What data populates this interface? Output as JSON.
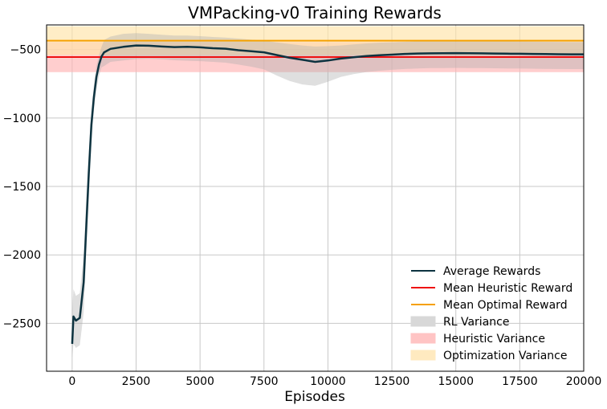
{
  "chart_data": {
    "type": "line",
    "title": "VMPacking-v0 Training Rewards",
    "xlabel": "Episodes",
    "ylabel": "",
    "xlim": [
      -1000,
      20000
    ],
    "ylim": [
      -2850,
      -320
    ],
    "grid": true,
    "legend_position": "lower-right",
    "x_ticks": [
      0,
      2500,
      5000,
      7500,
      10000,
      12500,
      15000,
      17500,
      20000
    ],
    "x_tick_labels": [
      "0",
      "2500",
      "5000",
      "7500",
      "10000",
      "12500",
      "15000",
      "17500",
      "20000"
    ],
    "y_ticks": [
      -2500,
      -2000,
      -1500,
      -1000,
      -500
    ],
    "y_tick_labels": [
      "−2500",
      "−2000",
      "−1500",
      "−1000",
      "−500"
    ],
    "series": [
      {
        "name": "Average Rewards",
        "kind": "line",
        "color": "#0d3340",
        "x": [
          0,
          50,
          150,
          300,
          450,
          550,
          650,
          750,
          850,
          950,
          1050,
          1150,
          1250,
          1500,
          2000,
          2500,
          3000,
          3500,
          4000,
          4500,
          5000,
          5500,
          6000,
          6500,
          7000,
          7500,
          8000,
          8500,
          9000,
          9500,
          10000,
          10500,
          11000,
          11500,
          12000,
          12500,
          13000,
          13500,
          14000,
          14500,
          15000,
          15500,
          16000,
          16500,
          17000,
          17500,
          18000,
          18500,
          19000,
          19500,
          20000
        ],
        "y": [
          -2650,
          -2450,
          -2480,
          -2460,
          -2200,
          -1800,
          -1400,
          -1050,
          -850,
          -700,
          -610,
          -550,
          -520,
          -495,
          -480,
          -470,
          -472,
          -478,
          -482,
          -480,
          -484,
          -490,
          -494,
          -505,
          -512,
          -520,
          -540,
          -560,
          -575,
          -590,
          -580,
          -566,
          -556,
          -548,
          -542,
          -537,
          -532,
          -529,
          -528,
          -527,
          -526,
          -527,
          -528,
          -529,
          -530,
          -531,
          -532,
          -533,
          -534,
          -535,
          -535
        ]
      },
      {
        "name": "RL Variance",
        "kind": "band",
        "color": "#b0b0b0",
        "x": [
          0,
          50,
          150,
          300,
          450,
          550,
          650,
          750,
          850,
          950,
          1050,
          1150,
          1250,
          1500,
          2000,
          2500,
          3000,
          3500,
          4000,
          4500,
          5000,
          5500,
          6000,
          6500,
          7000,
          7500,
          8000,
          8500,
          9000,
          9500,
          10000,
          10500,
          11000,
          11500,
          12000,
          12500,
          13000,
          13500,
          14000,
          14500,
          15000,
          15500,
          16000,
          16500,
          17000,
          17500,
          18000,
          18500,
          19000,
          19500,
          20000
        ],
        "upper": [
          -2400,
          -2250,
          -2300,
          -2280,
          -2000,
          -1600,
          -1250,
          -950,
          -760,
          -620,
          -540,
          -480,
          -430,
          -405,
          -385,
          -380,
          -385,
          -392,
          -398,
          -398,
          -402,
          -408,
          -412,
          -420,
          -428,
          -435,
          -448,
          -460,
          -470,
          -478,
          -475,
          -470,
          -462,
          -455,
          -450,
          -447,
          -443,
          -440,
          -438,
          -437,
          -436,
          -437,
          -438,
          -439,
          -440,
          -441,
          -442,
          -443,
          -444,
          -445,
          -445
        ],
        "lower": [
          -2750,
          -2650,
          -2680,
          -2660,
          -2420,
          -2000,
          -1600,
          -1180,
          -950,
          -790,
          -690,
          -630,
          -620,
          -590,
          -580,
          -570,
          -568,
          -572,
          -578,
          -582,
          -585,
          -590,
          -596,
          -610,
          -625,
          -645,
          -690,
          -730,
          -755,
          -765,
          -735,
          -700,
          -680,
          -665,
          -655,
          -648,
          -642,
          -638,
          -636,
          -635,
          -634,
          -635,
          -636,
          -637,
          -638,
          -639,
          -640,
          -641,
          -642,
          -643,
          -643
        ]
      },
      {
        "name": "Mean Heuristic Reward",
        "kind": "hline",
        "color": "#ee1111",
        "y": -555
      },
      {
        "name": "Mean Optimal Reward",
        "kind": "hline",
        "color": "#f5a000",
        "y": -435
      },
      {
        "name": "Heuristic Variance",
        "kind": "hband",
        "color": "#ffb3b3",
        "lower": -665,
        "upper": -445
      },
      {
        "name": "Optimization Variance",
        "kind": "hband",
        "color": "#ffe4a8",
        "lower": -540,
        "upper": -330
      }
    ],
    "legend": [
      {
        "label": "Average Rewards",
        "kind": "line",
        "color": "#0d3340"
      },
      {
        "label": "Mean Heuristic Reward",
        "kind": "line",
        "color": "#ee1111"
      },
      {
        "label": "Mean Optimal Reward",
        "kind": "line",
        "color": "#f5a000"
      },
      {
        "label": "RL Variance",
        "kind": "patch",
        "color": "#d8d8d8"
      },
      {
        "label": "Heuristic Variance",
        "kind": "patch",
        "color": "#ffc4c4"
      },
      {
        "label": "Optimization Variance",
        "kind": "patch",
        "color": "#ffeac0"
      }
    ]
  }
}
